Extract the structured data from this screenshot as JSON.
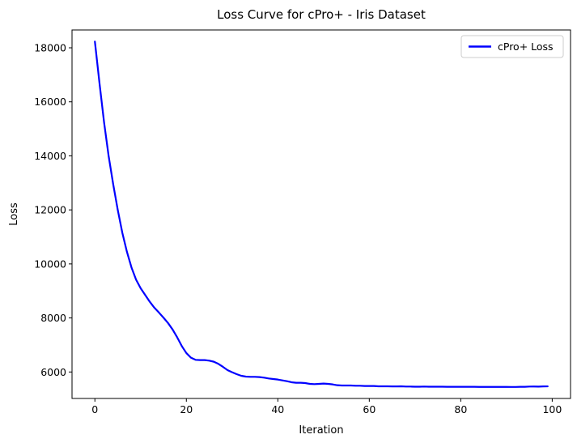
{
  "chart_data": {
    "type": "line",
    "title": "Loss Curve for cPro+ - Iris Dataset",
    "xlabel": "Iteration",
    "ylabel": "Loss",
    "xlim": [
      -5,
      104
    ],
    "ylim": [
      5020,
      18660
    ],
    "xticks": [
      0,
      20,
      40,
      60,
      80,
      100
    ],
    "yticks": [
      6000,
      8000,
      10000,
      12000,
      14000,
      16000,
      18000
    ],
    "grid": false,
    "legend": "top-right",
    "series": [
      {
        "name": "cPro+ Loss",
        "color": "#0000ff",
        "x": [
          0,
          1,
          2,
          3,
          4,
          5,
          6,
          7,
          8,
          9,
          10,
          11,
          12,
          13,
          14,
          15,
          16,
          17,
          18,
          19,
          20,
          21,
          22,
          23,
          24,
          25,
          26,
          27,
          28,
          29,
          30,
          31,
          32,
          33,
          34,
          35,
          36,
          37,
          38,
          39,
          40,
          41,
          42,
          43,
          44,
          45,
          46,
          47,
          48,
          49,
          50,
          51,
          52,
          53,
          54,
          55,
          56,
          57,
          58,
          59,
          60,
          61,
          62,
          63,
          64,
          65,
          66,
          67,
          68,
          69,
          70,
          71,
          72,
          73,
          74,
          75,
          76,
          77,
          78,
          79,
          80,
          81,
          82,
          83,
          84,
          85,
          86,
          87,
          88,
          89,
          90,
          91,
          92,
          93,
          94,
          95,
          96,
          97,
          98,
          99
        ],
        "y": [
          18230,
          16700,
          15250,
          14000,
          12950,
          12000,
          11150,
          10450,
          9870,
          9420,
          9100,
          8850,
          8600,
          8380,
          8200,
          8010,
          7810,
          7570,
          7280,
          6960,
          6700,
          6530,
          6450,
          6440,
          6440,
          6420,
          6380,
          6300,
          6190,
          6070,
          5990,
          5920,
          5860,
          5830,
          5820,
          5820,
          5810,
          5790,
          5760,
          5740,
          5720,
          5690,
          5660,
          5620,
          5600,
          5600,
          5590,
          5560,
          5550,
          5560,
          5570,
          5560,
          5540,
          5510,
          5500,
          5500,
          5500,
          5490,
          5490,
          5480,
          5480,
          5480,
          5470,
          5470,
          5470,
          5465,
          5465,
          5470,
          5460,
          5460,
          5455,
          5455,
          5460,
          5455,
          5455,
          5455,
          5455,
          5452,
          5452,
          5452,
          5450,
          5450,
          5450,
          5450,
          5448,
          5448,
          5448,
          5448,
          5448,
          5448,
          5448,
          5445,
          5445,
          5450,
          5452,
          5460,
          5462,
          5458,
          5465,
          5468
        ]
      }
    ]
  }
}
